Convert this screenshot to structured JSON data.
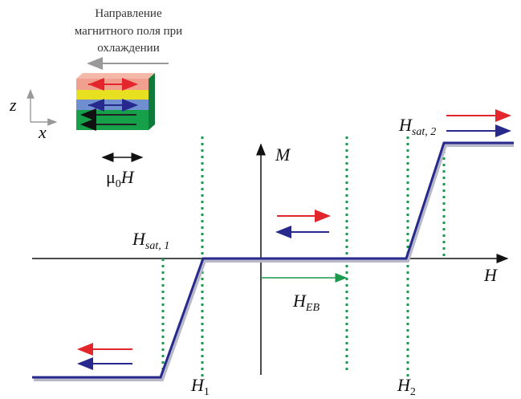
{
  "caption": {
    "lines": [
      "Направление",
      "магнитного поля при",
      "охлаждении"
    ]
  },
  "coords": {
    "z": "z",
    "x": "x"
  },
  "field_label": {
    "main": "μ",
    "sub": "0",
    "tail": "H"
  },
  "axes": {
    "y": "M",
    "x": "H"
  },
  "labels": {
    "hsat1": {
      "main": "H",
      "sub": "sat, 1"
    },
    "hsat2": {
      "main": "H",
      "sub": "sat, 2"
    },
    "heb": {
      "main": "H",
      "sub": "EB"
    },
    "h1": {
      "main": "H",
      "sub": "1"
    },
    "h2": {
      "main": "H",
      "sub": "2"
    }
  }
}
